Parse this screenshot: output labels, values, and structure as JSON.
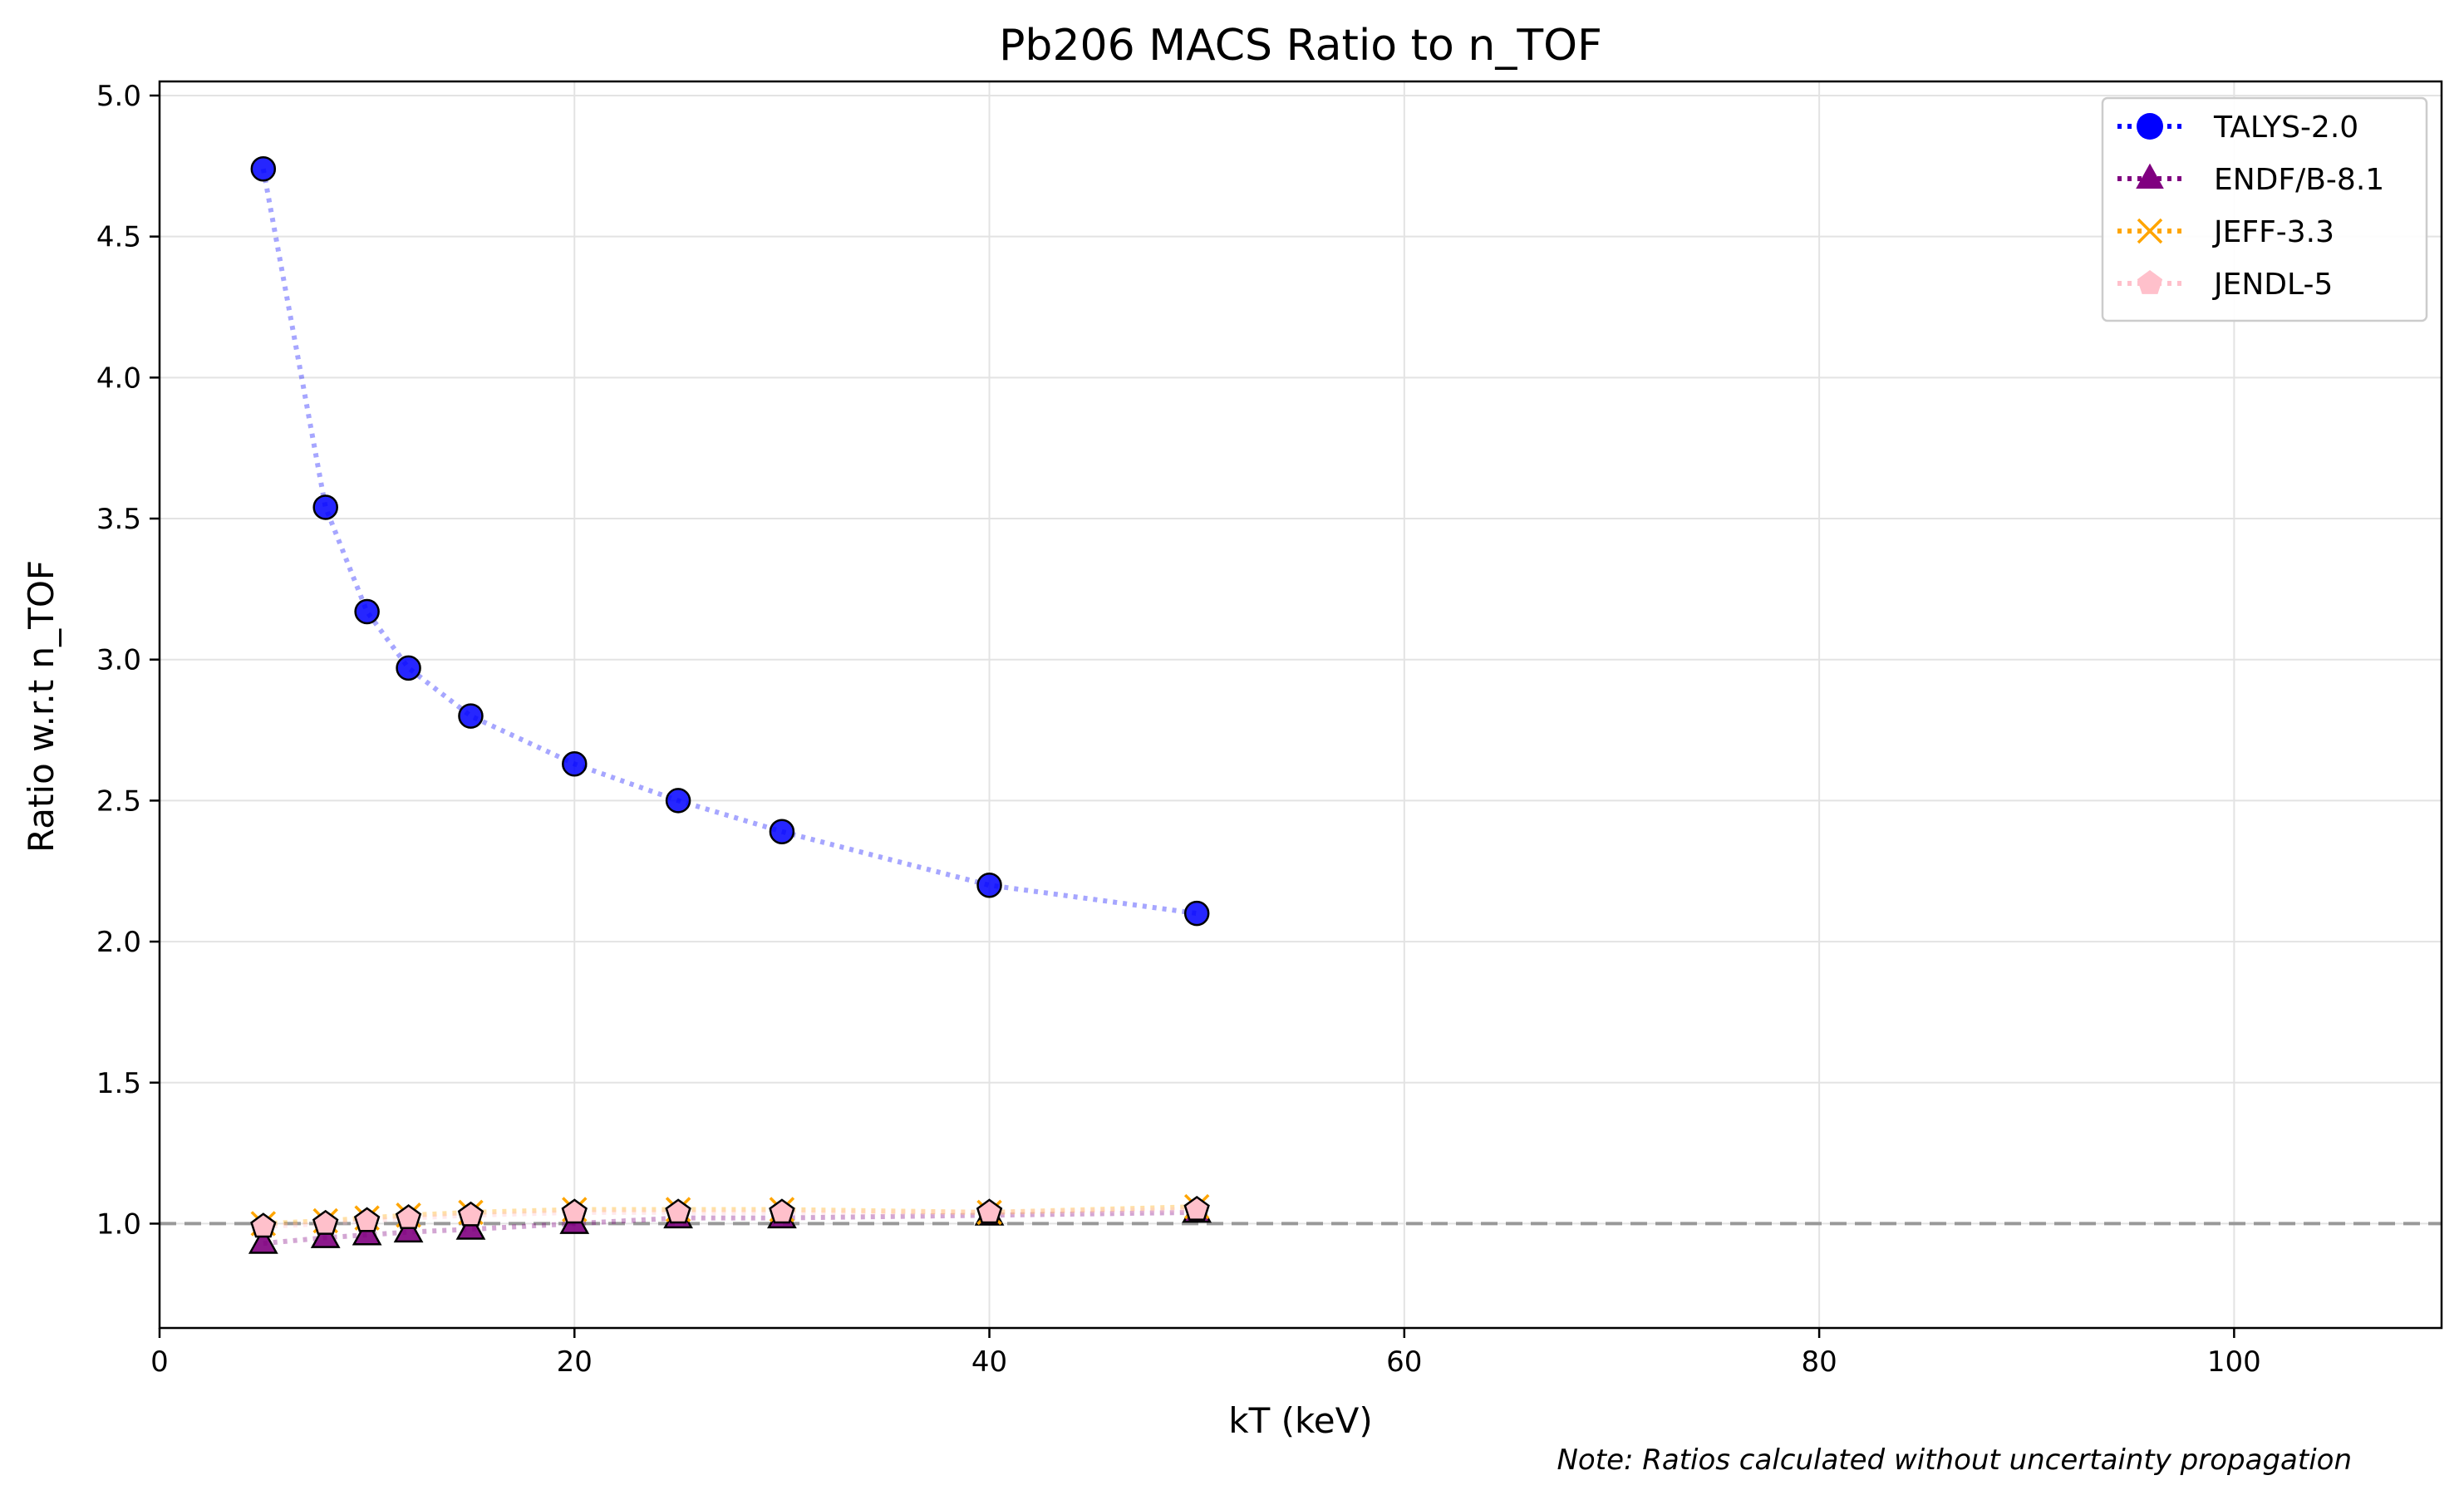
{
  "chart_data": {
    "type": "line",
    "title": "Pb206 MACS Ratio to n_TOF",
    "xlabel": "kT (keV)",
    "ylabel": "Ratio w.r.t n_TOF",
    "xlim": [
      0,
      110
    ],
    "ylim": [
      0.63,
      5.05
    ],
    "xticks": [
      "0",
      "20",
      "40",
      "60",
      "80",
      "100"
    ],
    "yticks": [
      "1.0",
      "1.5",
      "2.0",
      "2.5",
      "3.0",
      "3.5",
      "4.0",
      "4.5",
      "5.0"
    ],
    "grid": true,
    "legend_position": "top-right",
    "reference_line": 1.0,
    "note": "Note: Ratios calculated without uncertainty propagation",
    "x": [
      5,
      8,
      10,
      12,
      15,
      20,
      25,
      30,
      40,
      50
    ],
    "series": [
      {
        "name": "TALYS-2.0",
        "marker": "circle",
        "color": "#0000ff",
        "values": [
          4.74,
          3.54,
          3.17,
          2.97,
          2.8,
          2.63,
          2.5,
          2.39,
          2.2,
          2.1
        ]
      },
      {
        "name": "ENDF/B-8.1",
        "marker": "triangle",
        "color": "#800080",
        "values": [
          0.93,
          0.95,
          0.96,
          0.97,
          0.98,
          1.0,
          1.02,
          1.02,
          1.03,
          1.04
        ]
      },
      {
        "name": "JEFF-3.3",
        "marker": "x",
        "color": "#ffa500",
        "values": [
          1.0,
          1.01,
          1.02,
          1.03,
          1.04,
          1.05,
          1.05,
          1.05,
          1.04,
          1.06
        ]
      },
      {
        "name": "JENDL-5",
        "marker": "pentagon",
        "color": "#ffc0cb",
        "values": [
          0.99,
          1.0,
          1.01,
          1.02,
          1.03,
          1.04,
          1.04,
          1.04,
          1.04,
          1.05
        ]
      }
    ]
  }
}
